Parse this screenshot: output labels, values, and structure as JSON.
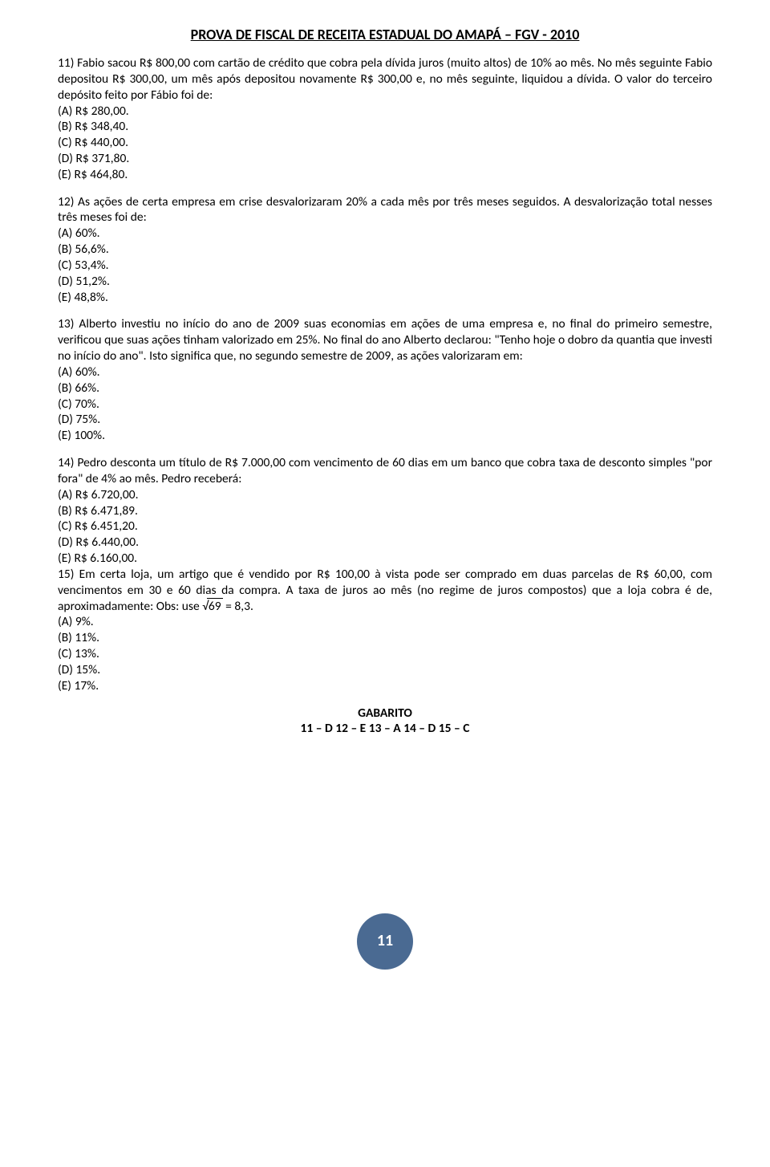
{
  "title": "PROVA DE FISCAL DE RECEITA ESTADUAL DO AMAPÁ – FGV - 2010",
  "q11": {
    "text": "11) Fabio sacou R$ 800,00 com cartão de crédito que cobra pela dívida juros (muito altos) de 10% ao mês. No mês seguinte Fabio depositou R$ 300,00, um mês após depositou novamente R$ 300,00 e, no mês seguinte, liquidou a dívida. O valor do terceiro depósito feito por Fábio foi de:",
    "a": "(A) R$ 280,00.",
    "b": "(B) R$ 348,40.",
    "c": "(C) R$ 440,00.",
    "d": "(D) R$ 371,80.",
    "e": "(E) R$ 464,80."
  },
  "q12": {
    "text": "12) As ações de certa empresa em crise desvalorizaram 20% a cada mês por três meses seguidos. A desvalorização total nesses três meses foi de:",
    "a": "(A) 60%.",
    "b": "(B) 56,6%.",
    "c": "(C) 53,4%.",
    "d": "(D) 51,2%.",
    "e": "(E) 48,8%."
  },
  "q13": {
    "text": "13) Alberto investiu no início do ano de 2009 suas economias em ações de uma empresa e, no final do primeiro semestre, verificou que suas ações tinham valorizado em 25%. No final do ano Alberto declarou: \"Tenho hoje o dobro da quantia que investi no início do ano\". Isto significa que, no segundo semestre de 2009, as ações valorizaram em:",
    "a": "(A) 60%.",
    "b": "(B) 66%.",
    "c": "(C) 70%.",
    "d": "(D) 75%.",
    "e": "(E) 100%."
  },
  "q14": {
    "text": "14) Pedro desconta um título de R$ 7.000,00 com vencimento de 60 dias em um banco que cobra taxa de desconto simples \"por fora\" de 4% ao mês. Pedro receberá:",
    "a": "(A) R$ 6.720,00.",
    "b": "(B) R$ 6.471,89.",
    "c": "(C) R$ 6.451,20.",
    "d": "(D) R$ 6.440,00.",
    "e": "(E) R$ 6.160,00."
  },
  "q15": {
    "text_before": "15) Em certa loja, um artigo que é vendido por R$ 100,00 à vista pode ser comprado em duas parcelas de R$ 60,00, com vencimentos em 30 e 60 dias da compra. A taxa de juros ao mês (no regime de juros compostos) que a loja cobra é de, aproximadamente: Obs: use ",
    "sqrt_val": "69",
    "text_after": " = 8,3.",
    "a": "(A) 9%.",
    "b": "(B) 11%.",
    "c": "(C) 13%.",
    "d": "(D) 15%.",
    "e": "(E) 17%."
  },
  "gabarito": {
    "label": "GABARITO",
    "line": "11 – D   12 – E   13 – A   14 – D   15 – C"
  },
  "page_number": "11"
}
